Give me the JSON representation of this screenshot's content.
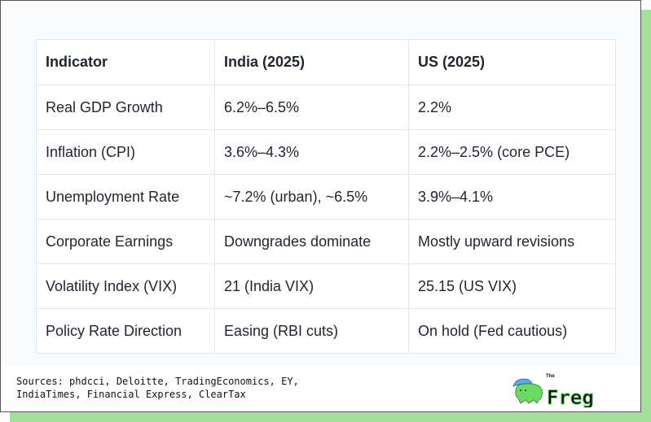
{
  "table": {
    "headers": [
      "Indicator",
      "India (2025)",
      "US (2025)"
    ],
    "rows": [
      [
        "Real GDP Growth",
        "6.2%–6.5%",
        "2.2%"
      ],
      [
        "Inflation (CPI)",
        "3.6%–4.3%",
        "2.2%–2.5% (core PCE)"
      ],
      [
        "Unemployment Rate",
        "~7.2% (urban), ~6.5%",
        "3.9%–4.1%"
      ],
      [
        "Corporate Earnings",
        "Downgrades dominate",
        "Mostly upward revisions"
      ],
      [
        "Volatility Index (VIX)",
        "21 (India VIX)",
        "25.15 (US VIX)"
      ],
      [
        "Policy Rate Direction",
        "Easing (RBI cuts)",
        "On hold (Fed cautious)"
      ]
    ]
  },
  "footer": {
    "sources": "Sources: phdcci, Deloitte, TradingEconomics, EY,\nIndiaTimes, Financial Express, ClearTax",
    "logo_text": "The Freg"
  },
  "colors": {
    "accent": "#a3e09a",
    "frog": "#6bdc62",
    "cap": "#5aa9e6"
  }
}
